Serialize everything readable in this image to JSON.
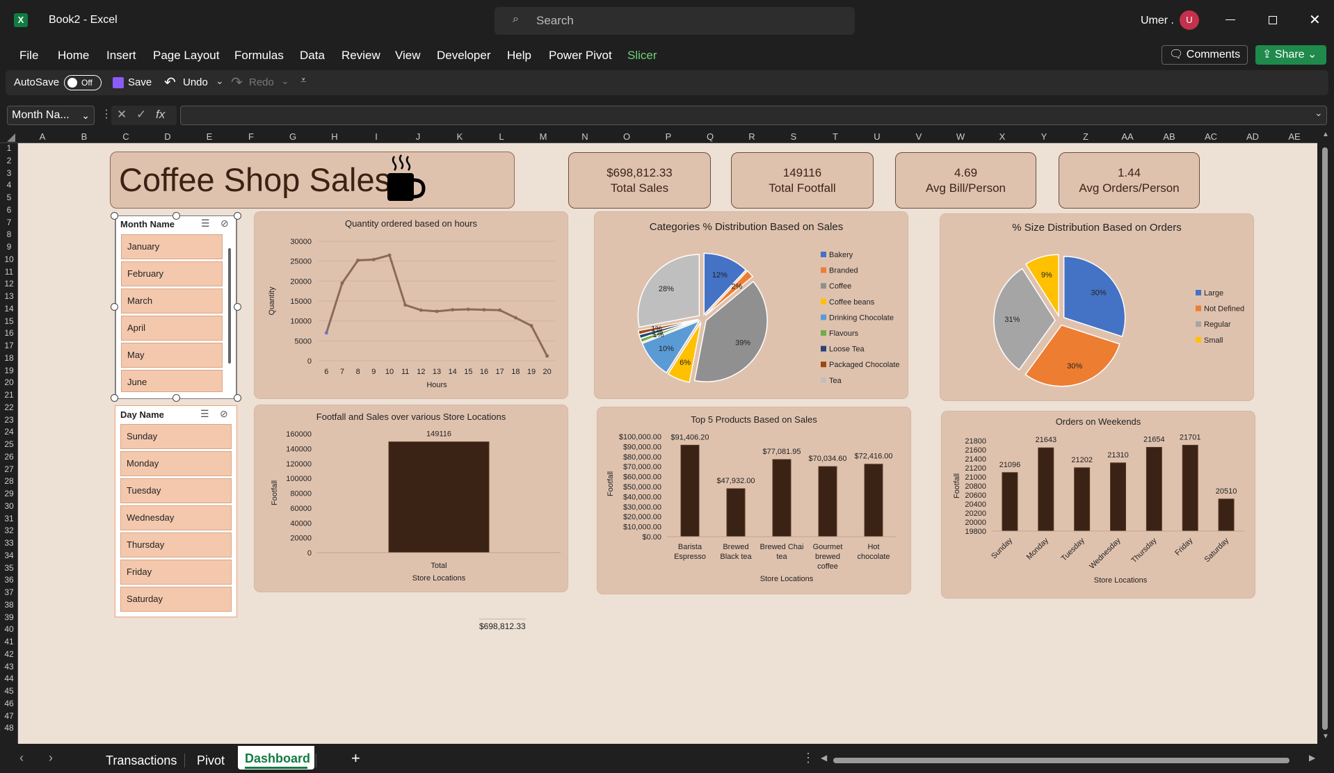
{
  "window": {
    "app_name": "Book2  -  Excel",
    "search_placeholder": "Search",
    "user_name": "Umer .",
    "user_initial": "U"
  },
  "menu": [
    "File",
    "Home",
    "Insert",
    "Page Layout",
    "Formulas",
    "Data",
    "Review",
    "View",
    "Developer",
    "Help",
    "Power Pivot",
    "Slicer"
  ],
  "menu_buttons": {
    "comments": "Comments",
    "share": "Share"
  },
  "qat": {
    "autosave": "AutoSave",
    "autosave_state": "Off",
    "save": "Save",
    "undo": "Undo",
    "redo": "Redo"
  },
  "formula_bar": {
    "name_box": "Month Na...",
    "fx": "fx",
    "formula": ""
  },
  "columns": [
    "A",
    "B",
    "C",
    "D",
    "E",
    "F",
    "G",
    "H",
    "I",
    "J",
    "K",
    "L",
    "M",
    "N",
    "O",
    "P",
    "Q",
    "R",
    "S",
    "T",
    "U",
    "V",
    "W",
    "X",
    "Y",
    "Z",
    "AA",
    "AB",
    "AC",
    "AD",
    "AE"
  ],
  "dashboard": {
    "title": "Coffee Shop Sales",
    "kpis": [
      {
        "value": "$698,812.33",
        "label": "Total Sales"
      },
      {
        "value": "149116",
        "label": "Total Footfall"
      },
      {
        "value": "4.69",
        "label": "Avg Bill/Person"
      },
      {
        "value": "1.44",
        "label": "Avg Orders/Person"
      }
    ],
    "loose_cell": "$698,812.33"
  },
  "slicers": {
    "month": {
      "title": "Month Name",
      "items": [
        "January",
        "February",
        "March",
        "April",
        "May",
        "June"
      ]
    },
    "day": {
      "title": "Day Name",
      "items": [
        "Sunday",
        "Monday",
        "Tuesday",
        "Wednesday",
        "Thursday",
        "Friday",
        "Saturday"
      ]
    }
  },
  "tabs": [
    "Transactions",
    "Pivot",
    "Dashboard"
  ],
  "active_tab": "Dashboard",
  "colors": {
    "dark_brown": "#3a2214",
    "line": "#8c6a5a",
    "card": "#dfc2ae",
    "slicer_green": "#4caf50"
  },
  "chart_data": [
    {
      "type": "line",
      "title": "Quantity ordered based on hours",
      "xlabel": "Hours",
      "ylabel": "Quantity",
      "x": [
        6,
        7,
        8,
        9,
        10,
        11,
        12,
        13,
        14,
        15,
        16,
        17,
        18,
        19,
        20
      ],
      "values": [
        7000,
        19500,
        25200,
        25400,
        26500,
        14000,
        12700,
        12400,
        12800,
        12900,
        12800,
        12700,
        10800,
        8800,
        1200
      ],
      "ylim": [
        0,
        30000
      ],
      "yticks": [
        0,
        5000,
        10000,
        15000,
        20000,
        25000,
        30000
      ]
    },
    {
      "type": "pie",
      "title": "Categories % Distribution Based on Sales",
      "categories": [
        "Bakery",
        "Branded",
        "Coffee",
        "Coffee beans",
        "Drinking Chocolate",
        "Flavours",
        "Loose Tea",
        "Packaged Chocolate",
        "Tea"
      ],
      "values": [
        12,
        2,
        39,
        6,
        10,
        1,
        1,
        1,
        28
      ],
      "labels": [
        "12%",
        "2%",
        "39%",
        "6%",
        "10%",
        "1%",
        "1%",
        "1%",
        "28%"
      ],
      "colors": [
        "#4472c4",
        "#ed7d31",
        "#909090",
        "#ffc000",
        "#5b9bd5",
        "#70ad47",
        "#264478",
        "#9e480e",
        "#bfbfbf"
      ],
      "legend": "right"
    },
    {
      "type": "pie",
      "title": "% Size Distribution Based on Orders",
      "categories": [
        "Large",
        "Not Defined",
        "Regular",
        "Small"
      ],
      "values": [
        30,
        30,
        31,
        9
      ],
      "labels": [
        "30%",
        "30%",
        "31%",
        "9%"
      ],
      "colors": [
        "#4472c4",
        "#ed7d31",
        "#a5a5a5",
        "#ffc000"
      ],
      "legend": "right"
    },
    {
      "type": "bar",
      "title": "Footfall and Sales over various Store Locations",
      "xlabel": "Store Locations",
      "ylabel": "Footfall",
      "categories": [
        "Total"
      ],
      "values": [
        149116
      ],
      "data_labels": [
        "149116"
      ],
      "ylim": [
        0,
        160000
      ],
      "yticks": [
        0,
        20000,
        40000,
        60000,
        80000,
        100000,
        120000,
        140000,
        160000
      ]
    },
    {
      "type": "bar",
      "title": "Top 5 Products Based on Sales",
      "xlabel": "Store Locations",
      "ylabel": "Footfall",
      "categories": [
        "Barista Espresso",
        "Brewed Black tea",
        "Brewed Chai tea",
        "Gourmet brewed coffee",
        "Hot chocolate"
      ],
      "values": [
        91406.2,
        47932.0,
        77081.95,
        70034.6,
        72416.0
      ],
      "data_labels": [
        "$91,406.20",
        "$47,932.00",
        "$77,081.95",
        "$70,034.60",
        "$72,416.00"
      ],
      "ylim": [
        0,
        100000
      ],
      "yticks": [
        "$0.00",
        "$10,000.00",
        "$20,000.00",
        "$30,000.00",
        "$40,000.00",
        "$50,000.00",
        "$60,000.00",
        "$70,000.00",
        "$80,000.00",
        "$90,000.00",
        "$100,000.00"
      ]
    },
    {
      "type": "bar",
      "title": "Orders on Weekends",
      "xlabel": "Store Locations",
      "ylabel": "Footfall",
      "categories": [
        "Sunday",
        "Monday",
        "Tuesday",
        "Wednesday",
        "Thursday",
        "Friday",
        "Saturday"
      ],
      "values": [
        21096,
        21643,
        21202,
        21310,
        21654,
        21701,
        20510
      ],
      "data_labels": [
        "21096",
        "21643",
        "21202",
        "21310",
        "21654",
        "21701",
        "20510"
      ],
      "ylim": [
        19800,
        21800
      ],
      "yticks": [
        19800,
        20000,
        20200,
        20400,
        20600,
        20800,
        21000,
        21200,
        21400,
        21600,
        21800
      ]
    }
  ]
}
